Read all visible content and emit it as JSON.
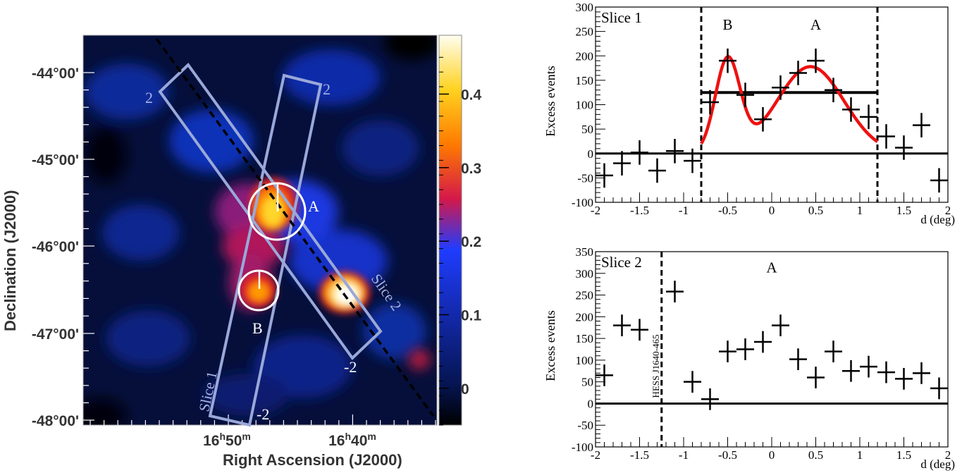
{
  "chart_data": [
    {
      "type": "heatmap",
      "xlabel": "Right Ascension (J2000)",
      "ylabel": "Declination (J2000)",
      "x_tick_labels": [
        {
          "h": "16",
          "m": "50"
        },
        {
          "h": "16",
          "m": "40"
        }
      ],
      "y_tick_labels": [
        "-44°00'",
        "-45°00'",
        "-46°00'",
        "-47°00'",
        "-48°00'"
      ],
      "colorbar_ticks": [
        "0.4",
        "0.3",
        "0.2",
        "0.1",
        "0"
      ],
      "colorbar_range": [
        -0.05,
        0.48
      ],
      "colorscale": [
        "#000000",
        "#05144f",
        "#1f3cff",
        "#d4184a",
        "#ff7a00",
        "#ffd21f",
        "#fffef0"
      ],
      "sources": [
        {
          "label": "A",
          "ra": "16h46m",
          "dec": -45.6
        },
        {
          "label": "B",
          "ra": "16h48.5m",
          "dec": -46.5
        }
      ],
      "slice_labels": [
        "Slice 1",
        "Slice 2"
      ],
      "slice_end_labels": {
        "start": "2",
        "end": "-2"
      }
    },
    {
      "type": "scatter",
      "title": "Slice 1",
      "xlabel": "d (deg)",
      "ylabel": "Excess events",
      "xlim": [
        -2,
        2
      ],
      "ylim": [
        -100,
        300
      ],
      "x_ticks": [
        -2,
        -1.5,
        -1,
        -0.5,
        0,
        0.5,
        1,
        1.5,
        2
      ],
      "y_ticks": [
        -100,
        -50,
        0,
        50,
        100,
        150,
        200,
        250,
        300
      ],
      "points": [
        {
          "x": -1.9,
          "y": -45,
          "yerr": 25
        },
        {
          "x": -1.7,
          "y": -20,
          "yerr": 25
        },
        {
          "x": -1.5,
          "y": 2,
          "yerr": 25
        },
        {
          "x": -1.3,
          "y": -35,
          "yerr": 25
        },
        {
          "x": -1.1,
          "y": 5,
          "yerr": 25
        },
        {
          "x": -0.9,
          "y": -15,
          "yerr": 25
        },
        {
          "x": -0.7,
          "y": 105,
          "yerr": 25
        },
        {
          "x": -0.5,
          "y": 190,
          "yerr": 25
        },
        {
          "x": -0.3,
          "y": 120,
          "yerr": 25
        },
        {
          "x": -0.1,
          "y": 70,
          "yerr": 25
        },
        {
          "x": 0.1,
          "y": 135,
          "yerr": 25
        },
        {
          "x": 0.3,
          "y": 165,
          "yerr": 25
        },
        {
          "x": 0.5,
          "y": 190,
          "yerr": 25
        },
        {
          "x": 0.7,
          "y": 130,
          "yerr": 25
        },
        {
          "x": 0.9,
          "y": 90,
          "yerr": 25
        },
        {
          "x": 1.1,
          "y": 75,
          "yerr": 25
        },
        {
          "x": 1.3,
          "y": 35,
          "yerr": 25
        },
        {
          "x": 1.5,
          "y": 12,
          "yerr": 25
        },
        {
          "x": 1.7,
          "y": 58,
          "yerr": 25
        },
        {
          "x": 1.9,
          "y": -55,
          "yerr": 25
        }
      ],
      "constant_fit": {
        "y": 125,
        "x_range": [
          -0.8,
          1.2
        ]
      },
      "gaussian_fit": {
        "x_range": [
          -0.8,
          1.2
        ],
        "baseline": 0,
        "components": [
          {
            "amplitude": 190,
            "mean": -0.5,
            "sigma": 0.14
          },
          {
            "amplitude": 178,
            "mean": 0.44,
            "sigma": 0.38
          }
        ]
      },
      "region_boundaries": [
        -0.8,
        1.2
      ],
      "annotations": [
        {
          "text": "B",
          "x": -0.5,
          "y": 265
        },
        {
          "text": "A",
          "x": 0.5,
          "y": 265
        }
      ],
      "colors": {
        "fit": "#ee1111",
        "data": "#000000"
      }
    },
    {
      "type": "scatter",
      "title": "Slice 2",
      "xlabel": "d (deg)",
      "ylabel": "Excess events",
      "xlim": [
        -2,
        2
      ],
      "ylim": [
        -100,
        350
      ],
      "x_ticks": [
        -2,
        -1.5,
        -1,
        -0.5,
        0,
        0.5,
        1,
        1.5,
        2
      ],
      "y_ticks": [
        -100,
        -50,
        0,
        50,
        100,
        150,
        200,
        250,
        300,
        350
      ],
      "points": [
        {
          "x": -1.9,
          "y": 65,
          "yerr": 25
        },
        {
          "x": -1.7,
          "y": 180,
          "yerr": 25
        },
        {
          "x": -1.5,
          "y": 170,
          "yerr": 25
        },
        {
          "x": -1.1,
          "y": 258,
          "yerr": 25
        },
        {
          "x": -0.9,
          "y": 50,
          "yerr": 25
        },
        {
          "x": -0.7,
          "y": 10,
          "yerr": 25
        },
        {
          "x": -0.5,
          "y": 120,
          "yerr": 25
        },
        {
          "x": -0.3,
          "y": 125,
          "yerr": 25
        },
        {
          "x": -0.1,
          "y": 142,
          "yerr": 25
        },
        {
          "x": 0.1,
          "y": 180,
          "yerr": 25
        },
        {
          "x": 0.3,
          "y": 102,
          "yerr": 25
        },
        {
          "x": 0.5,
          "y": 60,
          "yerr": 25
        },
        {
          "x": 0.7,
          "y": 120,
          "yerr": 25
        },
        {
          "x": 0.9,
          "y": 75,
          "yerr": 25
        },
        {
          "x": 1.1,
          "y": 85,
          "yerr": 25
        },
        {
          "x": 1.3,
          "y": 72,
          "yerr": 25
        },
        {
          "x": 1.5,
          "y": 57,
          "yerr": 25
        },
        {
          "x": 1.7,
          "y": 70,
          "yerr": 25
        },
        {
          "x": 1.9,
          "y": 35,
          "yerr": 25
        }
      ],
      "region_boundaries": [
        -1.25
      ],
      "boundary_label": "HESS J1640-465",
      "annotations": [
        {
          "text": "A",
          "x": 0,
          "y": 315
        }
      ],
      "colors": {
        "data": "#000000"
      }
    }
  ]
}
